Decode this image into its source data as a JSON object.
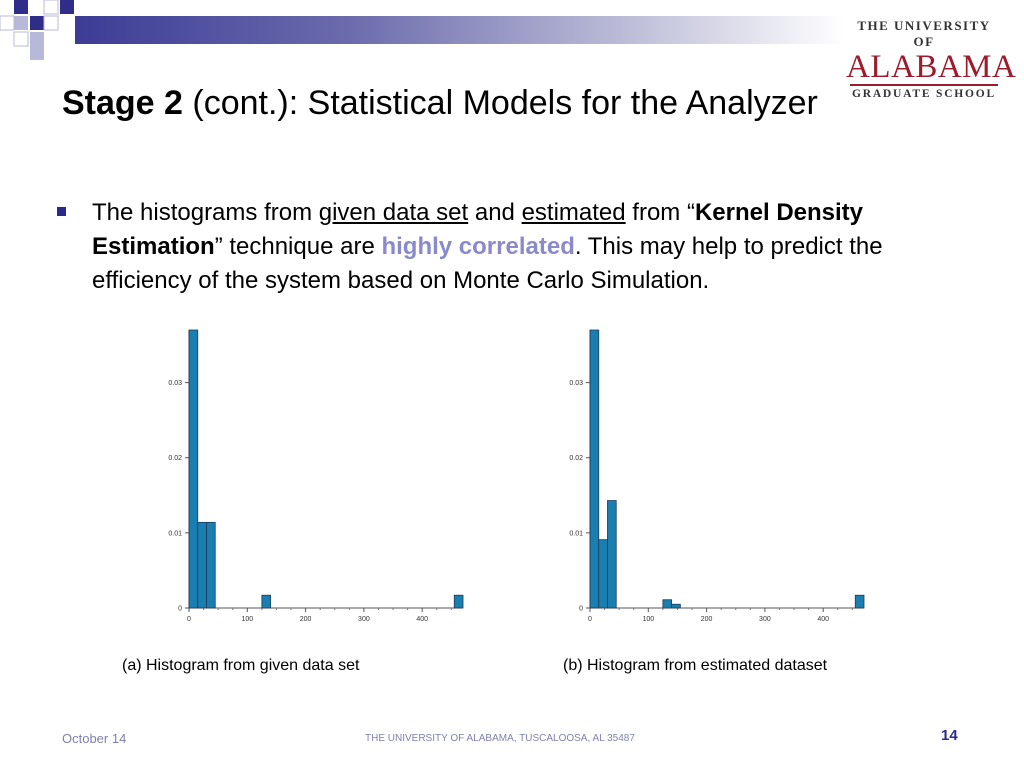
{
  "slide": {
    "title_bold": "Stage 2",
    "title_rest": " (cont.): Statistical Models for the Analyzer",
    "logo": {
      "line1": "THE UNIVERSITY OF",
      "line2": "ALABAMA",
      "line3": "GRADUATE SCHOOL"
    },
    "bullet": {
      "t1": "The histograms from ",
      "u1": "given data set",
      "t2": " and ",
      "u2": "estimated",
      "t3": " from “",
      "b1": "Kernel Density Estimation",
      "t4": "” technique are ",
      "hl": "highly correlated",
      "t5": ". This may help to predict the efficiency of the system based on Monte Carlo Simulation."
    },
    "footer": {
      "date": "October 14",
      "center": "THE UNIVERSITY OF ALABAMA, TUSCALOOSA, AL 35487",
      "page": "14"
    },
    "colors": {
      "accent": "#2a2a8a",
      "highlight": "#8a8acb",
      "bar_fill": "#1a7fb0",
      "logo_red": "#9b1c2c"
    }
  },
  "chart_data": [
    {
      "type": "bar",
      "caption": "(a) Histogram from given data set",
      "bin_width": 15,
      "bins": [
        {
          "x": 0,
          "value": 0.037
        },
        {
          "x": 15,
          "value": 0.0114
        },
        {
          "x": 30,
          "value": 0.0114
        },
        {
          "x": 125,
          "value": 0.0017
        },
        {
          "x": 455,
          "value": 0.0017
        }
      ],
      "xticks": [
        0,
        100,
        200,
        300,
        400
      ],
      "yticks": [
        0,
        0.01,
        0.02,
        0.03
      ],
      "ytick_labels": [
        "0",
        "0.01",
        "0.02",
        "0.03"
      ],
      "xlim": [
        0,
        470
      ],
      "ylim": [
        0,
        0.037
      ]
    },
    {
      "type": "bar",
      "caption": "(b) Histogram from estimated dataset",
      "bin_width": 15,
      "bins": [
        {
          "x": 0,
          "value": 0.037
        },
        {
          "x": 15,
          "value": 0.0091
        },
        {
          "x": 30,
          "value": 0.0143
        },
        {
          "x": 125,
          "value": 0.0011
        },
        {
          "x": 140,
          "value": 0.0005
        },
        {
          "x": 455,
          "value": 0.0017
        }
      ],
      "xticks": [
        0,
        100,
        200,
        300,
        400
      ],
      "yticks": [
        0,
        0.01,
        0.02,
        0.03
      ],
      "ytick_labels": [
        "0",
        "0.01",
        "0.02",
        "0.03"
      ],
      "xlim": [
        0,
        470
      ],
      "ylim": [
        0,
        0.037
      ]
    }
  ]
}
